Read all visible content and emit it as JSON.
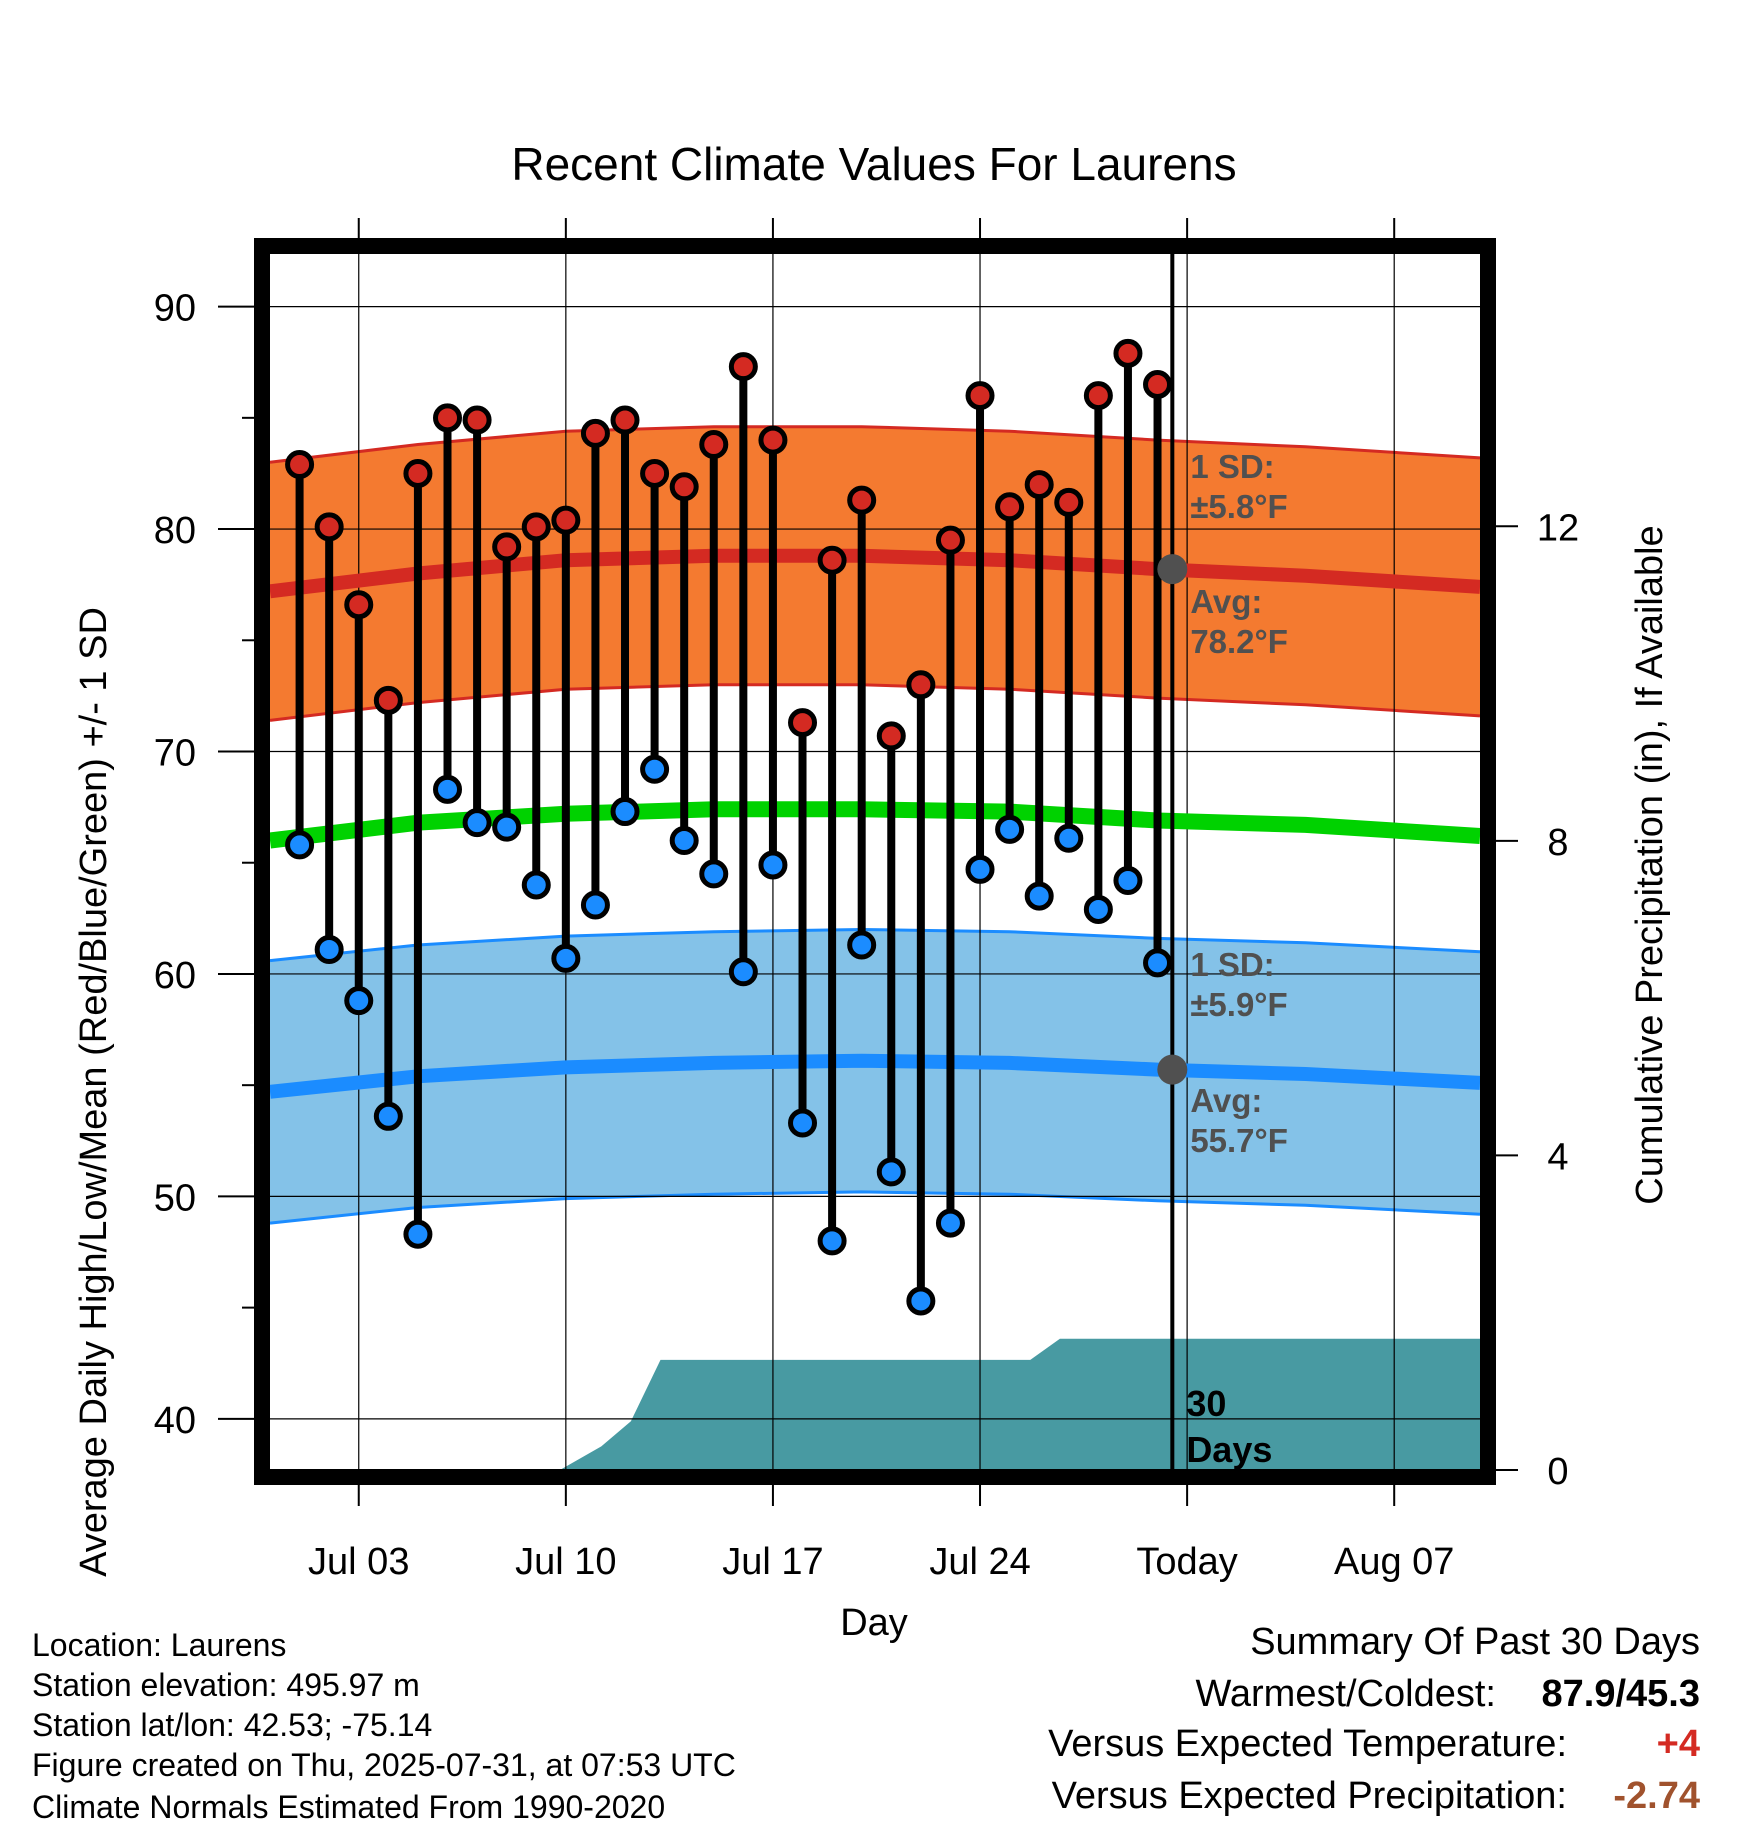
{
  "chart_data": {
    "type": "line",
    "title": "Recent Climate Values For Laurens",
    "xlabel": "Day",
    "ylabel": "Average Daily High/Low/Mean (Red/Blue/Green) +/- 1 SD",
    "y2label": "Cumulative Precipitation (in), If Available",
    "ylim": [
      37.7,
      92.5
    ],
    "y2lim": [
      0,
      15.5
    ],
    "x_tick_labels": [
      "Jul 03",
      "Jul 10",
      "Jul 17",
      "Jul 24",
      "Today",
      "Aug 07"
    ],
    "y_ticks": [
      40,
      50,
      60,
      70,
      80,
      90
    ],
    "y2_ticks": [
      0,
      4,
      8,
      12
    ],
    "x_range_days": [
      0,
      40.9
    ],
    "today_day": 30.5,
    "days": [
      1,
      2,
      3,
      4,
      5,
      6,
      7,
      8,
      9,
      10,
      11,
      12,
      13,
      14,
      15,
      16,
      17,
      18,
      19,
      20,
      21,
      22,
      23,
      24,
      25,
      26,
      27,
      28,
      29,
      30
    ],
    "daily_high": [
      82.9,
      80.1,
      76.6,
      72.3,
      82.5,
      85.0,
      84.9,
      79.2,
      80.1,
      80.4,
      84.3,
      84.9,
      82.5,
      81.9,
      83.8,
      87.3,
      84.0,
      71.3,
      78.6,
      81.3,
      70.7,
      73.0,
      79.5,
      86.0,
      81.0,
      82.0,
      81.2,
      86.0,
      87.9,
      86.5
    ],
    "daily_low": [
      65.8,
      61.1,
      58.8,
      53.6,
      48.3,
      68.3,
      66.8,
      66.6,
      64.0,
      60.7,
      63.1,
      67.3,
      69.2,
      66.0,
      64.5,
      60.1,
      64.9,
      53.3,
      48.0,
      61.3,
      51.1,
      45.3,
      48.8,
      64.7,
      66.5,
      63.5,
      66.1,
      62.9,
      64.2,
      60.5
    ],
    "normal_days": [
      0,
      5,
      10,
      15,
      20,
      25,
      30,
      35,
      40.9
    ],
    "normal_high": [
      77.2,
      78.0,
      78.6,
      78.8,
      78.8,
      78.6,
      78.2,
      77.9,
      77.4
    ],
    "normal_high_sd": 5.8,
    "normal_low": [
      54.7,
      55.4,
      55.8,
      56.0,
      56.1,
      56.0,
      55.7,
      55.5,
      55.1
    ],
    "normal_low_sd": 5.9,
    "normal_mean": [
      66.0,
      66.8,
      67.2,
      67.4,
      67.4,
      67.3,
      66.9,
      66.7,
      66.2
    ],
    "precip_days": [
      0,
      9.8,
      11.2,
      12.2,
      13.2,
      25.7,
      26.7,
      40.9
    ],
    "precip_cum": [
      0,
      0,
      0.3,
      0.62,
      1.4,
      1.4,
      1.67,
      1.67
    ],
    "precip_label": "30\nDays",
    "annotations": {
      "high_sd": "1 SD:",
      "high_sd_val": "±5.8°F",
      "high_avg": "Avg:",
      "high_avg_val": "78.2°F",
      "low_sd": "1 SD:",
      "low_sd_val": "±5.9°F",
      "low_avg": "Avg:",
      "low_avg_val": "55.7°F"
    },
    "colors": {
      "high_band": "#f47a30",
      "high_line": "#d42a22",
      "low_band": "#84c2e8",
      "low_line": "#1b8cff",
      "mean_line": "#00d200",
      "precip_fill": "#489aa2",
      "high_dot": "#d42a22",
      "low_dot": "#1b8cff",
      "annotation": "#505050",
      "today_dot": "#505050"
    }
  },
  "info": {
    "location": "Location: Laurens",
    "elevation": "Station elevation: 495.97 m",
    "latlon": "Station lat/lon: 42.53; -75.14",
    "created": "Figure created on Thu, 2025-07-31, at 07:53 UTC",
    "normals": "Climate Normals Estimated From 1990-2020"
  },
  "summary": {
    "title": "Summary Of Past 30 Days",
    "warmest_label": "Warmest/Coldest:",
    "warmest_value": "87.9/45.3",
    "temp_label": "Versus Expected Temperature:",
    "temp_value": "+4",
    "temp_color": "#d42a22",
    "precip_label": "Versus Expected Precipitation:",
    "precip_value": "-2.74",
    "precip_color": "#a0522d"
  }
}
